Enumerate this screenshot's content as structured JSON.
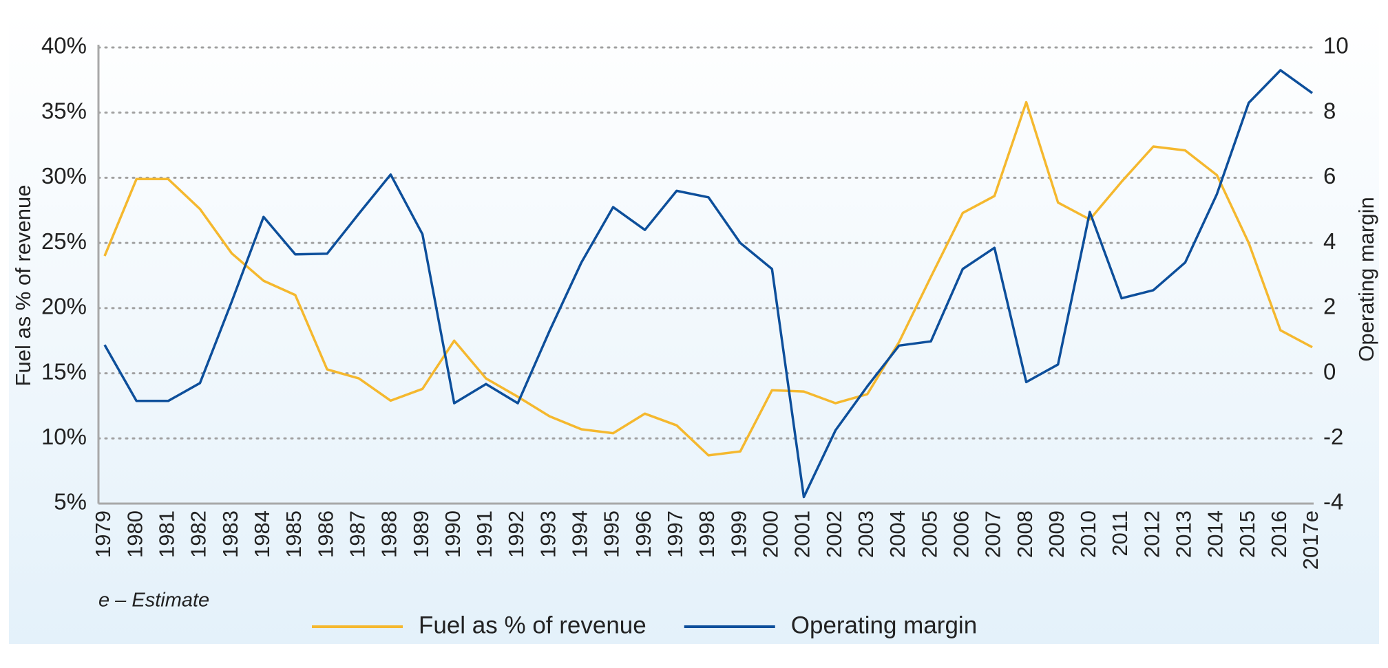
{
  "chart_data": {
    "type": "line",
    "note": "e – Estimate",
    "ylabel": "Fuel as % of revenue",
    "y2label": "Operating margin",
    "categories": [
      "1979",
      "1980",
      "1981",
      "1982",
      "1983",
      "1984",
      "1985",
      "1986",
      "1987",
      "1988",
      "1989",
      "1990",
      "1991",
      "1992",
      "1993",
      "1994",
      "1995",
      "1996",
      "1997",
      "1998",
      "1999",
      "2000",
      "2001",
      "2002",
      "2003",
      "2004",
      "2005",
      "2006",
      "2007",
      "2008",
      "2009",
      "2010",
      "2011",
      "2012",
      "2013",
      "2014",
      "2015",
      "2016",
      "2017e"
    ],
    "series": [
      {
        "name": "Fuel as % of revenue",
        "color": "#f5b82e",
        "axis": "y",
        "values": [
          24.0,
          29.9,
          29.9,
          27.6,
          24.2,
          22.1,
          21.0,
          15.3,
          14.6,
          12.9,
          13.8,
          17.5,
          14.6,
          13.2,
          11.7,
          10.7,
          10.4,
          11.9,
          11.0,
          8.7,
          9.0,
          13.7,
          13.6,
          12.7,
          13.4,
          17.4,
          22.4,
          27.3,
          28.6,
          35.8,
          28.1,
          26.8,
          29.7,
          32.4,
          32.1,
          30.2,
          25.0,
          18.3,
          17.0
        ]
      },
      {
        "name": "Operating margin",
        "color": "#0d4f9b",
        "axis": "y2",
        "values": [
          0.87,
          -0.85,
          -0.85,
          -0.3,
          2.2,
          4.8,
          3.65,
          3.67,
          4.9,
          6.1,
          4.27,
          -0.92,
          -0.33,
          -0.92,
          1.3,
          3.4,
          5.1,
          4.4,
          5.6,
          5.4,
          4.0,
          3.2,
          -3.8,
          -1.75,
          -0.4,
          0.85,
          0.98,
          3.2,
          3.85,
          -0.27,
          0.27,
          4.95,
          2.3,
          2.55,
          3.4,
          5.5,
          8.3,
          9.3,
          8.6
        ]
      }
    ],
    "ylim": [
      5,
      40
    ],
    "yticks": [
      {
        "value": 5,
        "label": "5%"
      },
      {
        "value": 10,
        "label": "10%"
      },
      {
        "value": 15,
        "label": "15%"
      },
      {
        "value": 20,
        "label": "20%"
      },
      {
        "value": 25,
        "label": "25%"
      },
      {
        "value": 30,
        "label": "30%"
      },
      {
        "value": 35,
        "label": "35%"
      },
      {
        "value": 40,
        "label": "40%"
      }
    ],
    "y2lim": [
      -4,
      10
    ],
    "y2ticks": [
      -4,
      -2,
      0,
      2,
      4,
      6,
      8,
      10
    ],
    "grid": true,
    "legend": "bottom"
  }
}
